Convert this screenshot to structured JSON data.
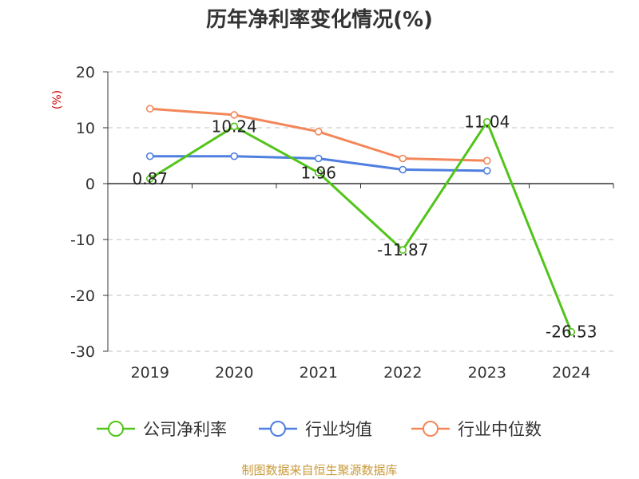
{
  "chart_data": {
    "type": "line",
    "title": "历年净利率变化情况(%)",
    "ylabel": "(%)",
    "categories": [
      "2019",
      "2020",
      "2021",
      "2022",
      "2023",
      "2024"
    ],
    "ylim": [
      -30,
      20
    ],
    "yticks": [
      20,
      10,
      0,
      -10,
      -20,
      -30
    ],
    "grid": true,
    "legend": "bottom",
    "series": [
      {
        "name": "公司净利率",
        "color": "#52c41a",
        "values": [
          0.87,
          10.24,
          1.96,
          -11.87,
          11.04,
          -26.53
        ],
        "labels": [
          "0.87",
          "10.24",
          "1.96",
          "-11.87",
          "11.04",
          "-26.53"
        ]
      },
      {
        "name": "行业均值",
        "color": "#4e7fe0",
        "values": [
          4.9,
          4.9,
          4.5,
          2.5,
          2.3,
          null
        ]
      },
      {
        "name": "行业中位数",
        "color": "#f3875a",
        "values": [
          13.4,
          12.3,
          9.3,
          4.5,
          4.1,
          null
        ]
      }
    ]
  },
  "source": "制图数据来自恒生聚源数据库"
}
